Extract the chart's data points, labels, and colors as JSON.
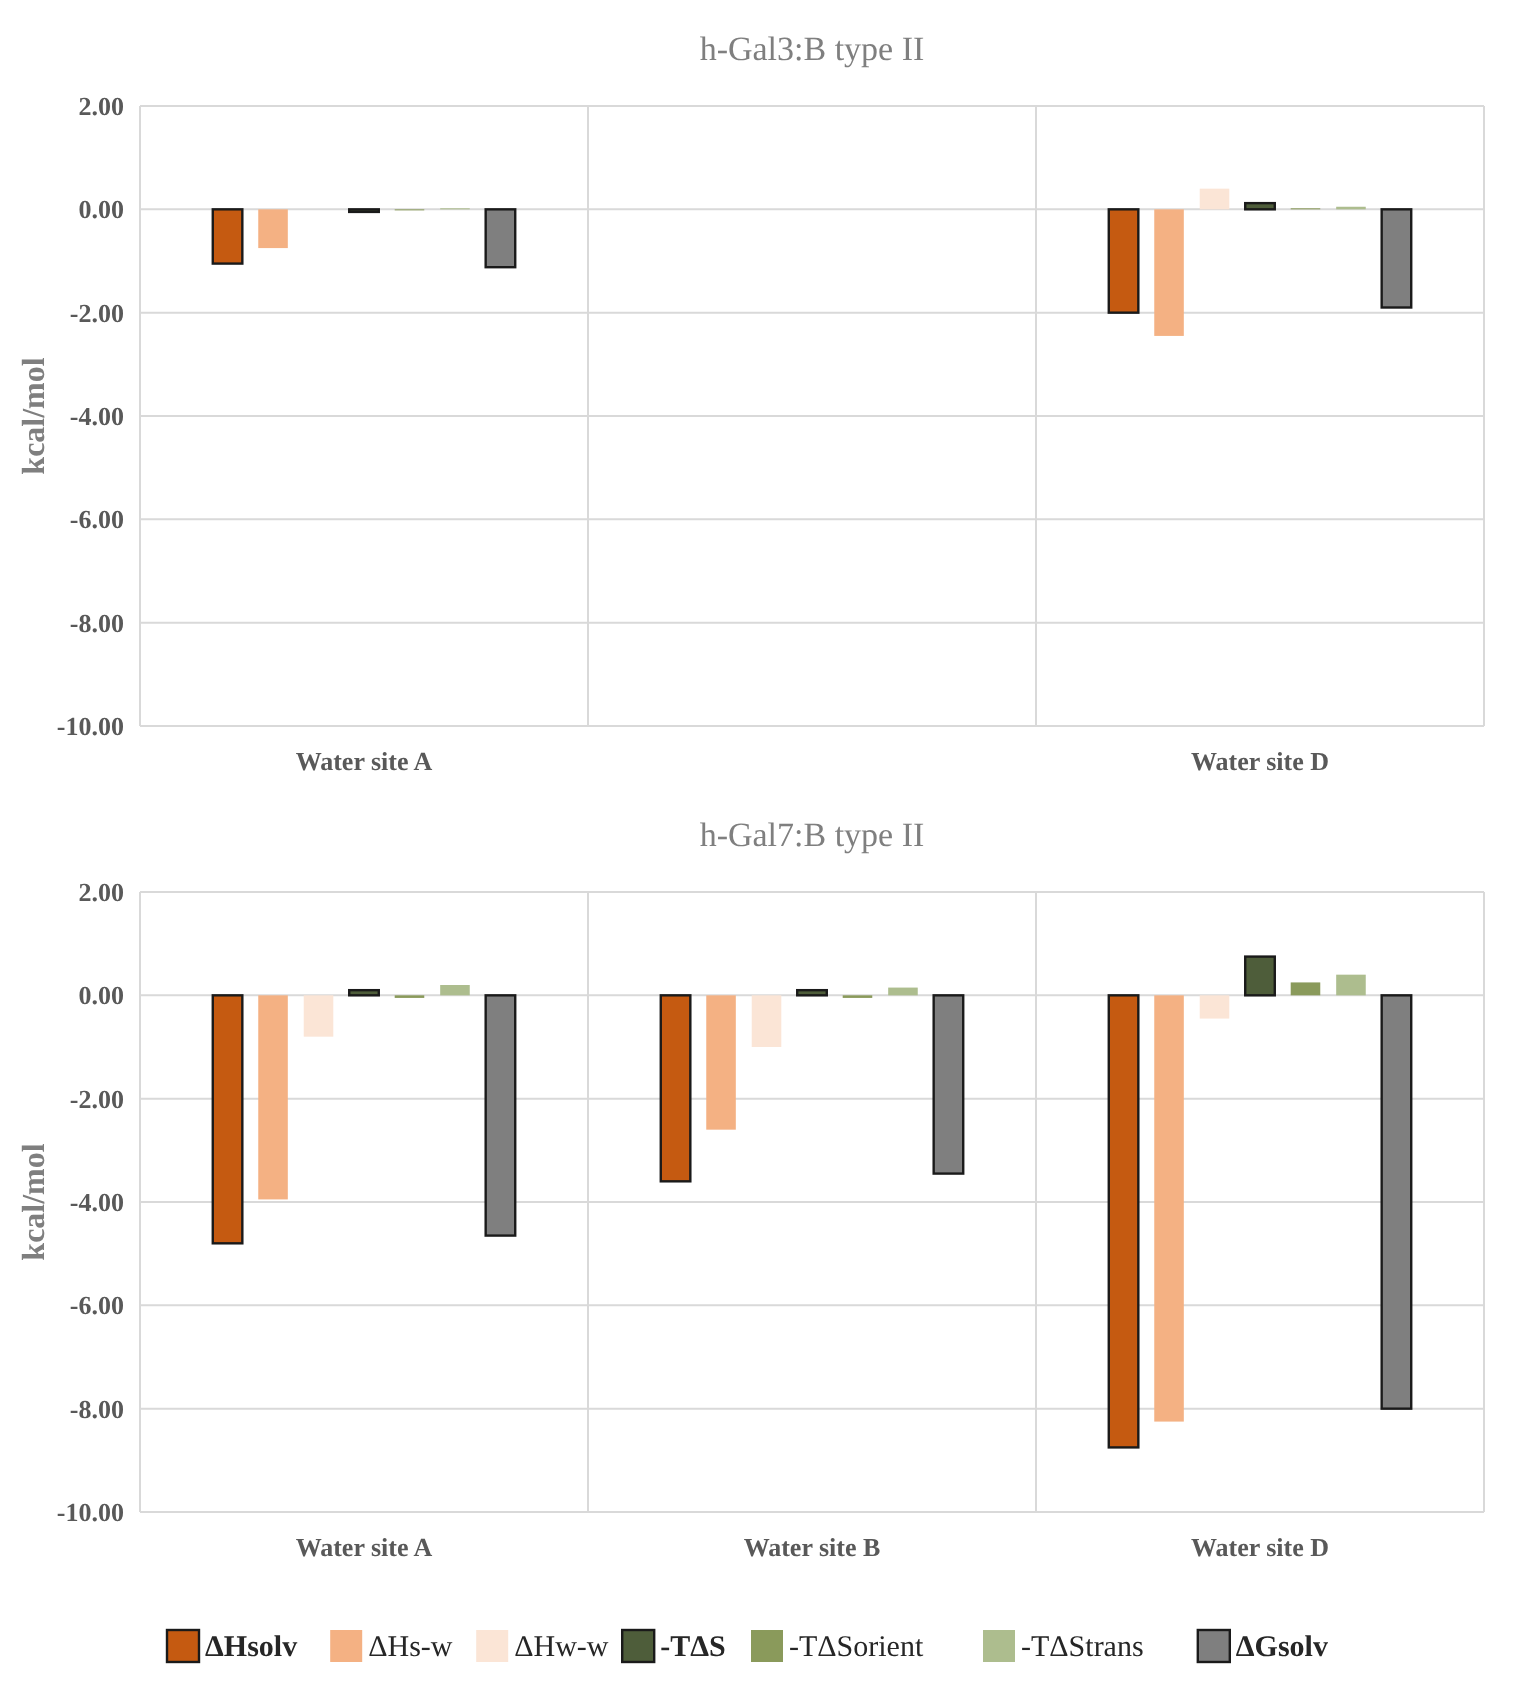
{
  "chart_data": [
    {
      "type": "bar",
      "title": "h-Gal3:B type II",
      "ylabel": "kcal/mol",
      "categories": [
        "Water site A",
        null,
        "Water site D"
      ],
      "ylim": [
        -10,
        2
      ],
      "yticks": [
        {
          "value": 2,
          "label": "2.00"
        },
        {
          "value": 0,
          "label": "0.00"
        },
        {
          "value": -2,
          "label": "-2.00"
        },
        {
          "value": -4,
          "label": "-4.00"
        },
        {
          "value": -6,
          "label": "-6.00"
        },
        {
          "value": -8,
          "label": "-8.00"
        },
        {
          "value": -10,
          "label": "-10.00"
        }
      ],
      "grid": true,
      "legend": false,
      "series": [
        {
          "color": "#c55a11",
          "values": [
            -1.05,
            null,
            -2.0
          ]
        },
        {
          "color": "#f4b183",
          "values": [
            -0.75,
            null,
            -2.45
          ]
        },
        {
          "color": "#fbe5d6",
          "values": [
            null,
            null,
            0.4
          ]
        },
        {
          "color": "#4e5d3a",
          "values": [
            -0.05,
            null,
            0.12
          ]
        },
        {
          "color": "#8a9a5b",
          "values": [
            -0.02,
            null,
            0.02
          ]
        },
        {
          "color": "#adbd8e",
          "values": [
            0.02,
            null,
            0.05
          ]
        },
        {
          "color": "#7f7f7f",
          "values": [
            -1.12,
            null,
            -1.9
          ]
        }
      ]
    },
    {
      "type": "bar",
      "title": "h-Gal7:B type II",
      "ylabel": "kcal/mol",
      "categories": [
        "Water site A",
        "Water site B",
        "Water site D"
      ],
      "ylim": [
        -10,
        2
      ],
      "yticks": [
        {
          "value": 2,
          "label": "2.00"
        },
        {
          "value": 0,
          "label": "0.00"
        },
        {
          "value": -2,
          "label": "-2.00"
        },
        {
          "value": -4,
          "label": "-4.00"
        },
        {
          "value": -6,
          "label": "-6.00"
        },
        {
          "value": -8,
          "label": "-8.00"
        },
        {
          "value": -10,
          "label": "-10.00"
        }
      ],
      "grid": true,
      "legend": "bottom",
      "series": [
        {
          "name": "ΔHsolv",
          "color": "#c55a11",
          "values": [
            -4.8,
            -3.6,
            -8.75
          ]
        },
        {
          "name": "ΔHs-w",
          "color": "#f4b183",
          "values": [
            -3.95,
            -2.6,
            -8.25
          ]
        },
        {
          "name": "ΔHw-w",
          "color": "#fbe5d6",
          "values": [
            -0.8,
            -1.0,
            -0.45
          ]
        },
        {
          "name": "-TΔS",
          "color": "#4e5d3a",
          "values": [
            0.1,
            0.1,
            0.75
          ]
        },
        {
          "name": "-TΔSorient",
          "color": "#8a9a5b",
          "values": [
            -0.05,
            -0.05,
            0.25
          ]
        },
        {
          "name": "-TΔStrans",
          "color": "#adbd8e",
          "values": [
            0.2,
            0.15,
            0.4
          ]
        },
        {
          "name": "ΔGsolv",
          "color": "#7f7f7f",
          "values": [
            -4.65,
            -3.45,
            -8.0
          ]
        }
      ]
    }
  ]
}
